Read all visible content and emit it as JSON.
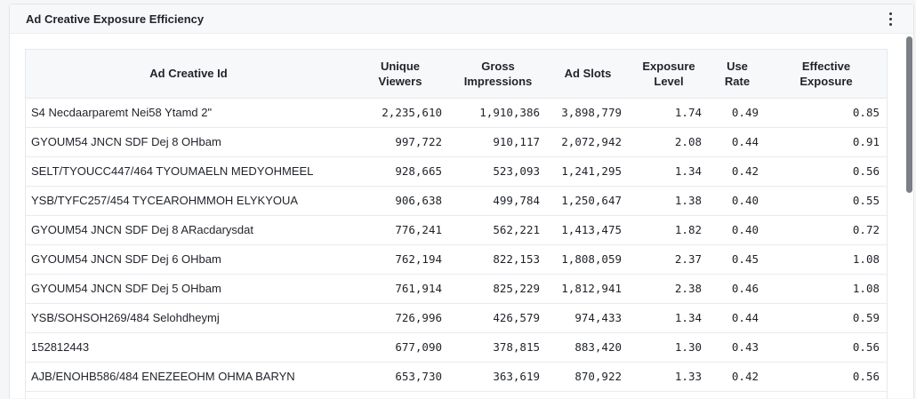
{
  "panel": {
    "title": "Ad Creative Exposure Efficiency"
  },
  "table": {
    "columns": [
      {
        "l1": "Ad Creative Id",
        "l2": ""
      },
      {
        "l1": "Unique",
        "l2": "Viewers"
      },
      {
        "l1": "Gross",
        "l2": "Impressions"
      },
      {
        "l1": "Ad Slots",
        "l2": ""
      },
      {
        "l1": "Exposure",
        "l2": "Level"
      },
      {
        "l1": "Use",
        "l2": "Rate"
      },
      {
        "l1": "Effective",
        "l2": "Exposure"
      }
    ],
    "rows": [
      [
        "S4 Necdaarparemt Nei58 Ytamd 2\"",
        "2,235,610",
        "1,910,386",
        "3,898,779",
        "1.74",
        "0.49",
        "0.85"
      ],
      [
        "GYOUM54 JNCN SDF Dej 8 OHbam",
        "997,722",
        "910,117",
        "2,072,942",
        "2.08",
        "0.44",
        "0.91"
      ],
      [
        "SELT/TYOUCC447/464 TYOUMAELN MEDYOHMEEL",
        "928,665",
        "523,093",
        "1,241,295",
        "1.34",
        "0.42",
        "0.56"
      ],
      [
        "YSB/TYFC257/454 TYCEAROHMMOH ELYKYOUA",
        "906,638",
        "499,784",
        "1,250,647",
        "1.38",
        "0.40",
        "0.55"
      ],
      [
        "GYOUM54 JNCN SDF Dej 8 ARacdarysdat",
        "776,241",
        "562,221",
        "1,413,475",
        "1.82",
        "0.40",
        "0.72"
      ],
      [
        "GYOUM54 JNCN SDF Dej 6 OHbam",
        "762,194",
        "822,153",
        "1,808,059",
        "2.37",
        "0.45",
        "1.08"
      ],
      [
        "GYOUM54 JNCN SDF Dej 5 OHbam",
        "761,914",
        "825,229",
        "1,812,941",
        "2.38",
        "0.46",
        "1.08"
      ],
      [
        "YSB/SOHSOH269/484 Selohdheymj",
        "726,996",
        "426,579",
        "974,433",
        "1.34",
        "0.44",
        "0.59"
      ],
      [
        "152812443",
        "677,090",
        "378,815",
        "883,420",
        "1.30",
        "0.43",
        "0.56"
      ],
      [
        "AJB/ENOHB586/484 ENEZEEOHM OHMA BARYN",
        "653,730",
        "363,619",
        "870,922",
        "1.33",
        "0.42",
        "0.56"
      ]
    ]
  },
  "icons": {
    "menu": "more-vertical-icon"
  },
  "colors": {
    "header_bg": "#f7f8fa",
    "border": "#e6e8eb",
    "scroll_thumb": "#7b7f86"
  }
}
